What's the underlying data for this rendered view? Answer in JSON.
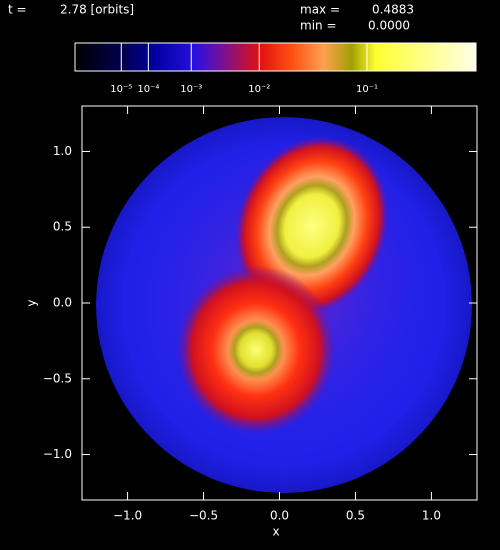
{
  "chart_data": {
    "type": "density-map",
    "time_prefix": "t =",
    "time_label": "2.78 [orbits]",
    "max_prefix": "max =",
    "max": 0.4883,
    "min_prefix": "min =",
    "min": {
      "value": 0,
      "label": "0.0000"
    },
    "colorbar_ticks": [
      {
        "value": 1e-05,
        "label": "10⁻⁵"
      },
      {
        "value": 0.0001,
        "label": "10⁻⁴"
      },
      {
        "value": 0.001,
        "label": "10⁻³"
      },
      {
        "value": 0.01,
        "label": "10⁻²"
      },
      {
        "value": 0.1,
        "label": "10⁻¹"
      }
    ],
    "x_label": "x",
    "y_label": "y",
    "xlim": [
      -1.3,
      1.3
    ],
    "ylim": [
      -1.3,
      1.3
    ],
    "xticks": [
      {
        "value": -1,
        "label": "−1.0"
      },
      {
        "value": -0.5,
        "label": "−0.5"
      },
      {
        "value": 0,
        "label": "0.0"
      },
      0.5,
      {
        "value": 1,
        "label": "1.0"
      }
    ],
    "yticks": [
      {
        "value": -1,
        "label": "−1.0"
      },
      {
        "value": -0.5,
        "label": "−0.5"
      },
      {
        "value": 0,
        "label": "0.0"
      },
      0.5,
      {
        "value": 1,
        "label": "1.0"
      }
    ]
  }
}
